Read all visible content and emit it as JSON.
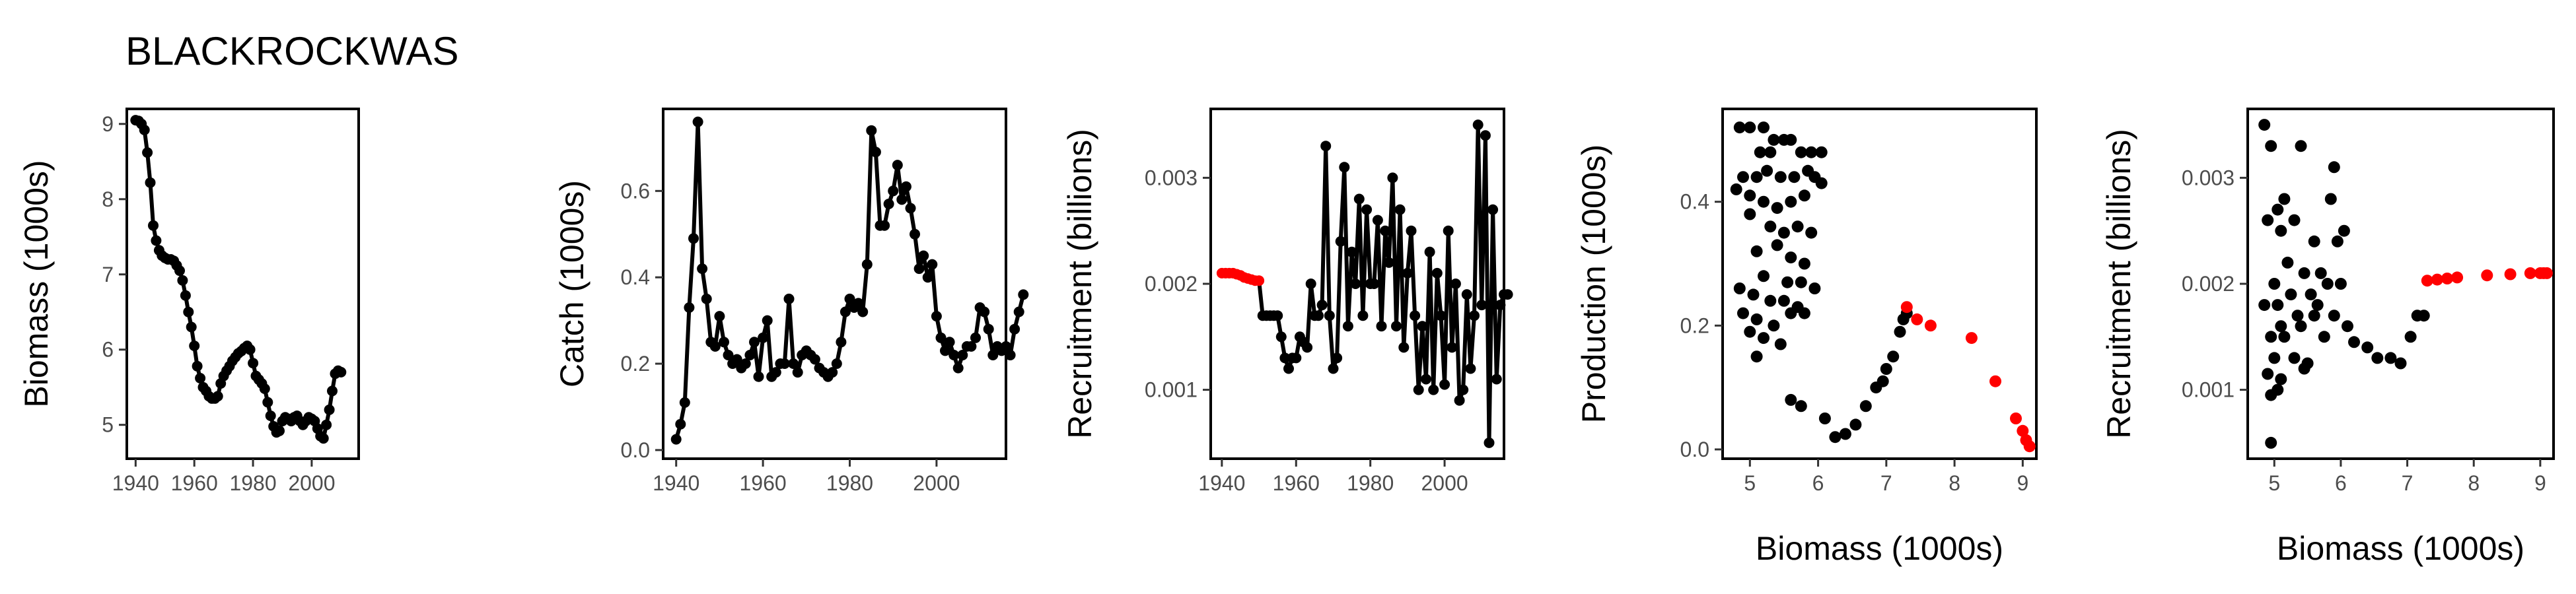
{
  "title": "BLACKROCKWAS",
  "colors": {
    "line": "#000000",
    "point": "#000000",
    "highlight": "#ff0000",
    "tick_text": "#4d4d4d"
  },
  "chart_data": [
    {
      "type": "line",
      "xlabel": "",
      "ylabel": "Biomass (1000s)",
      "xlim": [
        1937,
        2016
      ],
      "ylim": [
        4.55,
        9.2
      ],
      "xticks": [
        1940,
        1960,
        1980,
        2000
      ],
      "yticks": [
        5,
        6,
        7,
        8,
        9
      ],
      "tick_labels_x": [
        "1940",
        "1960",
        "1980",
        "2000"
      ],
      "tick_labels_y": [
        "5",
        "6",
        "7",
        "8",
        "9"
      ],
      "series": [
        {
          "x_start": 1940,
          "values": [
            9.05,
            9.04,
            9.0,
            8.92,
            8.62,
            8.22,
            7.65,
            7.45,
            7.32,
            7.25,
            7.22,
            7.2,
            7.2,
            7.18,
            7.12,
            7.05,
            6.92,
            6.72,
            6.5,
            6.3,
            6.05,
            5.78,
            5.62,
            5.5,
            5.45,
            5.38,
            5.35,
            5.35,
            5.38,
            5.55,
            5.65,
            5.72,
            5.78,
            5.85,
            5.9,
            5.95,
            5.98,
            6.02,
            6.05,
            6.0,
            5.82,
            5.65,
            5.6,
            5.55,
            5.48,
            5.3,
            5.12,
            4.98,
            4.9,
            4.92,
            5.05,
            5.1,
            5.08,
            5.05,
            5.1,
            5.12,
            5.05,
            5.0,
            5.05,
            5.1,
            5.08,
            5.05,
            4.95,
            4.85,
            4.82,
            5.0,
            5.2,
            5.45,
            5.68,
            5.72,
            5.7
          ]
        }
      ]
    },
    {
      "type": "line",
      "xlabel": "",
      "ylabel": "Catch (1000s)",
      "xlim": [
        1937,
        2016
      ],
      "ylim": [
        -0.02,
        0.79
      ],
      "xticks": [
        1940,
        1960,
        1980,
        2000
      ],
      "yticks": [
        0.0,
        0.2,
        0.4,
        0.6
      ],
      "tick_labels_x": [
        "1940",
        "1960",
        "1980",
        "2000"
      ],
      "tick_labels_y": [
        "0.0",
        "0.2",
        "0.4",
        "0.6"
      ],
      "series": [
        {
          "x_start": 1940,
          "values": [
            0.025,
            0.06,
            0.11,
            0.33,
            0.49,
            0.76,
            0.42,
            0.35,
            0.25,
            0.24,
            0.31,
            0.25,
            0.22,
            0.2,
            0.21,
            0.19,
            0.2,
            0.22,
            0.25,
            0.17,
            0.26,
            0.3,
            0.17,
            0.18,
            0.2,
            0.2,
            0.35,
            0.2,
            0.18,
            0.22,
            0.23,
            0.22,
            0.21,
            0.19,
            0.18,
            0.17,
            0.18,
            0.2,
            0.25,
            0.32,
            0.35,
            0.33,
            0.34,
            0.32,
            0.43,
            0.74,
            0.69,
            0.52,
            0.52,
            0.57,
            0.6,
            0.66,
            0.58,
            0.61,
            0.56,
            0.5,
            0.42,
            0.45,
            0.4,
            0.43,
            0.31,
            0.26,
            0.23,
            0.25,
            0.22,
            0.19,
            0.22,
            0.24,
            0.24,
            0.26,
            0.33,
            0.32,
            0.28,
            0.22,
            0.24,
            0.23,
            0.24,
            0.22,
            0.28,
            0.32,
            0.36
          ]
        }
      ]
    },
    {
      "type": "line",
      "xlabel": "",
      "ylabel": "Recruitment (billions)",
      "xlim": [
        1937,
        2016
      ],
      "ylim": [
        0.00035,
        0.00365
      ],
      "xticks": [
        1940,
        1960,
        1980,
        2000
      ],
      "yticks": [
        0.001,
        0.002,
        0.003
      ],
      "tick_labels_x": [
        "1940",
        "1960",
        "1980",
        "2000"
      ],
      "tick_labels_y": [
        "0.001",
        "0.002",
        "0.003"
      ],
      "series": [
        {
          "x_start": 1940,
          "values": [
            0.0021,
            0.0021,
            0.0021,
            0.0021,
            0.00209,
            0.00208,
            0.00206,
            0.00205,
            0.00204,
            0.00203,
            0.00203,
            0.0017,
            0.0017,
            0.0017,
            0.0017,
            0.0017,
            0.0015,
            0.0013,
            0.0012,
            0.0013,
            0.0013,
            0.0015,
            0.00145,
            0.0014,
            0.002,
            0.0017,
            0.0017,
            0.0018,
            0.0033,
            0.0017,
            0.0012,
            0.0013,
            0.0024,
            0.0031,
            0.0016,
            0.0023,
            0.002,
            0.0028,
            0.0017,
            0.0027,
            0.002,
            0.002,
            0.0026,
            0.0016,
            0.0025,
            0.0022,
            0.003,
            0.0016,
            0.0027,
            0.0014,
            0.0021,
            0.0025,
            0.0017,
            0.001,
            0.0016,
            0.0011,
            0.0023,
            0.001,
            0.0021,
            0.0017,
            0.00105,
            0.0025,
            0.0014,
            0.002,
            0.0009,
            0.001,
            0.0019,
            0.0012,
            0.0017,
            0.0035,
            0.0018,
            0.0034,
            0.0005,
            0.0027,
            0.0011,
            0.0018,
            0.0019,
            0.0019
          ],
          "highlight_first": 11
        }
      ]
    },
    {
      "type": "scatter",
      "xlabel": "Biomass (1000s)",
      "ylabel": "Production (1000s)",
      "xlim": [
        4.6,
        9.2
      ],
      "ylim": [
        -0.015,
        0.55
      ],
      "xticks": [
        5,
        6,
        7,
        8,
        9
      ],
      "yticks": [
        0.0,
        0.2,
        0.4
      ],
      "tick_labels_x": [
        "5",
        "6",
        "7",
        "8",
        "9"
      ],
      "tick_labels_y": [
        "0.0",
        "0.2",
        "0.4"
      ],
      "points_black": [
        [
          4.85,
          0.52
        ],
        [
          5.0,
          0.52
        ],
        [
          5.2,
          0.52
        ],
        [
          5.35,
          0.5
        ],
        [
          5.5,
          0.5
        ],
        [
          5.6,
          0.5
        ],
        [
          5.15,
          0.48
        ],
        [
          5.3,
          0.48
        ],
        [
          5.75,
          0.48
        ],
        [
          5.9,
          0.48
        ],
        [
          6.05,
          0.48
        ],
        [
          4.9,
          0.44
        ],
        [
          5.1,
          0.44
        ],
        [
          5.25,
          0.45
        ],
        [
          5.45,
          0.44
        ],
        [
          5.65,
          0.44
        ],
        [
          5.85,
          0.45
        ],
        [
          5.95,
          0.44
        ],
        [
          6.05,
          0.43
        ],
        [
          4.8,
          0.42
        ],
        [
          5.0,
          0.41
        ],
        [
          5.2,
          0.4
        ],
        [
          5.4,
          0.39
        ],
        [
          5.6,
          0.4
        ],
        [
          5.8,
          0.41
        ],
        [
          5.0,
          0.38
        ],
        [
          5.3,
          0.36
        ],
        [
          5.5,
          0.35
        ],
        [
          5.7,
          0.36
        ],
        [
          5.9,
          0.35
        ],
        [
          5.1,
          0.32
        ],
        [
          5.4,
          0.33
        ],
        [
          5.6,
          0.31
        ],
        [
          5.8,
          0.3
        ],
        [
          5.2,
          0.28
        ],
        [
          5.55,
          0.27
        ],
        [
          5.75,
          0.27
        ],
        [
          5.95,
          0.26
        ],
        [
          4.85,
          0.26
        ],
        [
          5.05,
          0.25
        ],
        [
          5.3,
          0.24
        ],
        [
          5.5,
          0.24
        ],
        [
          5.7,
          0.23
        ],
        [
          4.9,
          0.22
        ],
        [
          5.1,
          0.21
        ],
        [
          5.35,
          0.2
        ],
        [
          5.6,
          0.22
        ],
        [
          5.8,
          0.22
        ],
        [
          5.0,
          0.19
        ],
        [
          5.2,
          0.18
        ],
        [
          5.45,
          0.17
        ],
        [
          5.1,
          0.15
        ],
        [
          5.6,
          0.08
        ],
        [
          5.75,
          0.07
        ],
        [
          6.1,
          0.05
        ],
        [
          6.25,
          0.02
        ],
        [
          6.4,
          0.025
        ],
        [
          6.55,
          0.04
        ],
        [
          6.7,
          0.07
        ],
        [
          6.85,
          0.1
        ],
        [
          6.95,
          0.11
        ],
        [
          7.0,
          0.13
        ],
        [
          7.1,
          0.15
        ],
        [
          7.2,
          0.19
        ],
        [
          7.25,
          0.21
        ],
        [
          7.3,
          0.22
        ]
      ],
      "points_red": [
        [
          7.3,
          0.23
        ],
        [
          7.45,
          0.21
        ],
        [
          7.65,
          0.2
        ],
        [
          8.25,
          0.18
        ],
        [
          8.6,
          0.11
        ],
        [
          8.9,
          0.05
        ],
        [
          9.0,
          0.03
        ],
        [
          9.05,
          0.015
        ],
        [
          9.1,
          0.005
        ]
      ]
    },
    {
      "type": "scatter",
      "xlabel": "Biomass (1000s)",
      "ylabel": "Recruitment (billions)",
      "xlim": [
        4.6,
        9.2
      ],
      "ylim": [
        0.00035,
        0.00365
      ],
      "xticks": [
        5,
        6,
        7,
        8,
        9
      ],
      "yticks": [
        0.001,
        0.002,
        0.003
      ],
      "tick_labels_x": [
        "5",
        "6",
        "7",
        "8",
        "9"
      ],
      "tick_labels_y": [
        "0.001",
        "0.002",
        "0.003"
      ],
      "points_black": [
        [
          4.85,
          0.0035
        ],
        [
          4.95,
          0.0033
        ],
        [
          5.4,
          0.0033
        ],
        [
          5.9,
          0.0031
        ],
        [
          5.15,
          0.0028
        ],
        [
          5.05,
          0.0027
        ],
        [
          5.3,
          0.0026
        ],
        [
          5.85,
          0.0028
        ],
        [
          6.05,
          0.0025
        ],
        [
          4.9,
          0.0026
        ],
        [
          5.1,
          0.0025
        ],
        [
          5.6,
          0.0024
        ],
        [
          5.95,
          0.0024
        ],
        [
          5.2,
          0.0022
        ],
        [
          5.45,
          0.0021
        ],
        [
          5.7,
          0.0021
        ],
        [
          5.0,
          0.002
        ],
        [
          5.25,
          0.0019
        ],
        [
          5.55,
          0.0019
        ],
        [
          5.8,
          0.002
        ],
        [
          6.0,
          0.002
        ],
        [
          4.85,
          0.0018
        ],
        [
          5.05,
          0.0018
        ],
        [
          5.35,
          0.0017
        ],
        [
          5.65,
          0.0018
        ],
        [
          5.9,
          0.0017
        ],
        [
          5.1,
          0.0016
        ],
        [
          5.4,
          0.0016
        ],
        [
          5.6,
          0.0017
        ],
        [
          6.1,
          0.0016
        ],
        [
          4.95,
          0.0015
        ],
        [
          5.15,
          0.0015
        ],
        [
          5.75,
          0.0015
        ],
        [
          6.2,
          0.00145
        ],
        [
          5.0,
          0.0013
        ],
        [
          5.3,
          0.0013
        ],
        [
          5.5,
          0.00125
        ],
        [
          6.4,
          0.0014
        ],
        [
          6.55,
          0.0013
        ],
        [
          4.9,
          0.00115
        ],
        [
          5.1,
          0.0011
        ],
        [
          5.45,
          0.0012
        ],
        [
          5.05,
          0.001
        ],
        [
          4.95,
          0.00095
        ],
        [
          6.75,
          0.0013
        ],
        [
          6.9,
          0.00125
        ],
        [
          7.05,
          0.0015
        ],
        [
          7.15,
          0.0017
        ],
        [
          4.95,
          0.0005
        ],
        [
          7.25,
          0.0017
        ]
      ],
      "points_red": [
        [
          7.3,
          0.00203
        ],
        [
          7.45,
          0.00204
        ],
        [
          7.6,
          0.00205
        ],
        [
          7.75,
          0.00206
        ],
        [
          8.2,
          0.00208
        ],
        [
          8.55,
          0.00209
        ],
        [
          8.85,
          0.0021
        ],
        [
          9.0,
          0.0021
        ],
        [
          9.05,
          0.0021
        ],
        [
          9.1,
          0.0021
        ]
      ]
    }
  ]
}
